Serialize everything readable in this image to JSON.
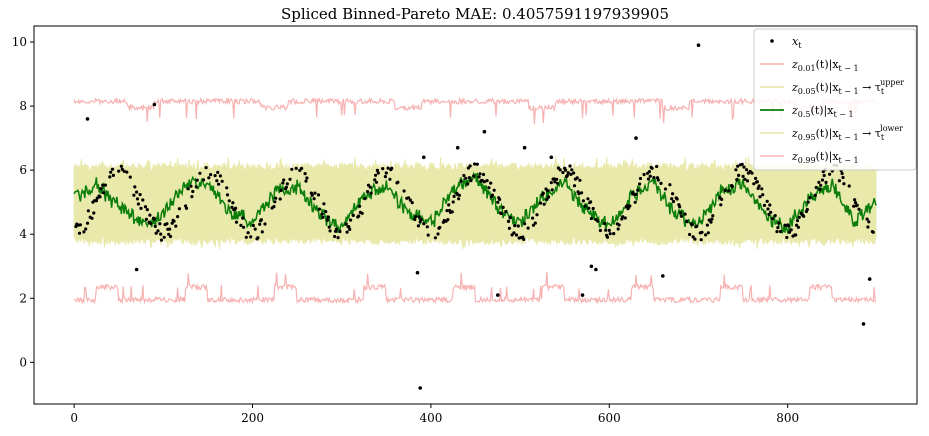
{
  "chart_data": {
    "type": "line",
    "title": "Spliced Binned-Pareto MAE: 0.4057591197939905",
    "xlabel": "",
    "ylabel": "",
    "xlim": [
      -45,
      945
    ],
    "ylim": [
      -1.3,
      10.5
    ],
    "xticks": [
      0,
      200,
      400,
      600,
      800
    ],
    "yticks": [
      0,
      2,
      4,
      6,
      8,
      10
    ],
    "grid": false,
    "legend_position": "top-right",
    "legend": [
      {
        "key": "obs",
        "label": "x",
        "sub": "t",
        "sup": "",
        "suffix": "",
        "kind": "point",
        "color": "#000000"
      },
      {
        "key": "q01",
        "label": "z",
        "sub": "0.01",
        "sup": "",
        "suffix": "(t)|x",
        "suffix_sub": "t − 1",
        "kind": "line",
        "color": "#f7b2b2"
      },
      {
        "key": "q05",
        "label": "z",
        "sub": "0.05",
        "sup": "upper",
        "suffix": "(t)|x",
        "suffix_sub": "t − 1",
        "arrow": " → τ",
        "kind": "line",
        "color": "#e6e6a8"
      },
      {
        "key": "q50",
        "label": "z",
        "sub": "0.5",
        "sup": "",
        "suffix": "(t)|x",
        "suffix_sub": "t − 1",
        "kind": "line",
        "color": "#0a7d0a"
      },
      {
        "key": "q95",
        "label": "z",
        "sub": "0.95",
        "sup": "lower",
        "suffix": "(t)|x",
        "suffix_sub": "t − 1",
        "arrow": " → τ",
        "kind": "line",
        "color": "#e6e6a8"
      },
      {
        "key": "q99",
        "label": "z",
        "sub": "0.99",
        "sup": "",
        "suffix": "(t)|x",
        "suffix_sub": "t − 1",
        "kind": "line",
        "color": "#f7b2b2"
      }
    ],
    "series": {
      "band_color": "#e8e8a8",
      "median_color": "#0a7d0a",
      "outer_color": "#f7b2b2",
      "period": 100,
      "n_points": 900,
      "median": {
        "x": [
          0,
          25,
          50,
          75,
          100,
          125,
          150,
          175,
          200,
          225,
          250,
          275,
          300,
          325,
          350,
          375,
          400,
          425,
          450,
          475,
          500,
          525,
          550,
          575,
          600,
          625,
          650,
          675,
          700,
          725,
          750,
          775,
          800,
          825,
          850,
          875,
          895
        ],
        "y": [
          5.1,
          5.5,
          4.9,
          4.3,
          4.6,
          5.6,
          5.6,
          4.7,
          4.4,
          5.3,
          5.5,
          4.6,
          4.2,
          5.2,
          5.5,
          4.7,
          4.3,
          5.4,
          5.8,
          4.8,
          4.3,
          5.2,
          5.6,
          4.7,
          4.2,
          5.2,
          5.6,
          4.6,
          4.3,
          5.3,
          5.6,
          4.6,
          4.2,
          5.2,
          5.5,
          4.4,
          4.9
        ]
      },
      "q05_upper": 6.1,
      "q05_lower": 3.8,
      "q01": 1.95,
      "q99": 8.15,
      "outliers": [
        {
          "x": 15,
          "y": 7.6
        },
        {
          "x": 90,
          "y": 8.05
        },
        {
          "x": 70,
          "y": 2.9
        },
        {
          "x": 385,
          "y": 2.8
        },
        {
          "x": 388,
          "y": -0.8
        },
        {
          "x": 392,
          "y": 6.4
        },
        {
          "x": 430,
          "y": 6.7
        },
        {
          "x": 460,
          "y": 7.2
        },
        {
          "x": 475,
          "y": 2.1
        },
        {
          "x": 505,
          "y": 6.7
        },
        {
          "x": 535,
          "y": 6.4
        },
        {
          "x": 570,
          "y": 2.1
        },
        {
          "x": 580,
          "y": 3.0
        },
        {
          "x": 585,
          "y": 2.9
        },
        {
          "x": 630,
          "y": 7.0
        },
        {
          "x": 660,
          "y": 2.7
        },
        {
          "x": 700,
          "y": 9.9
        },
        {
          "x": 885,
          "y": 1.2
        },
        {
          "x": 892,
          "y": 2.6
        }
      ]
    }
  }
}
